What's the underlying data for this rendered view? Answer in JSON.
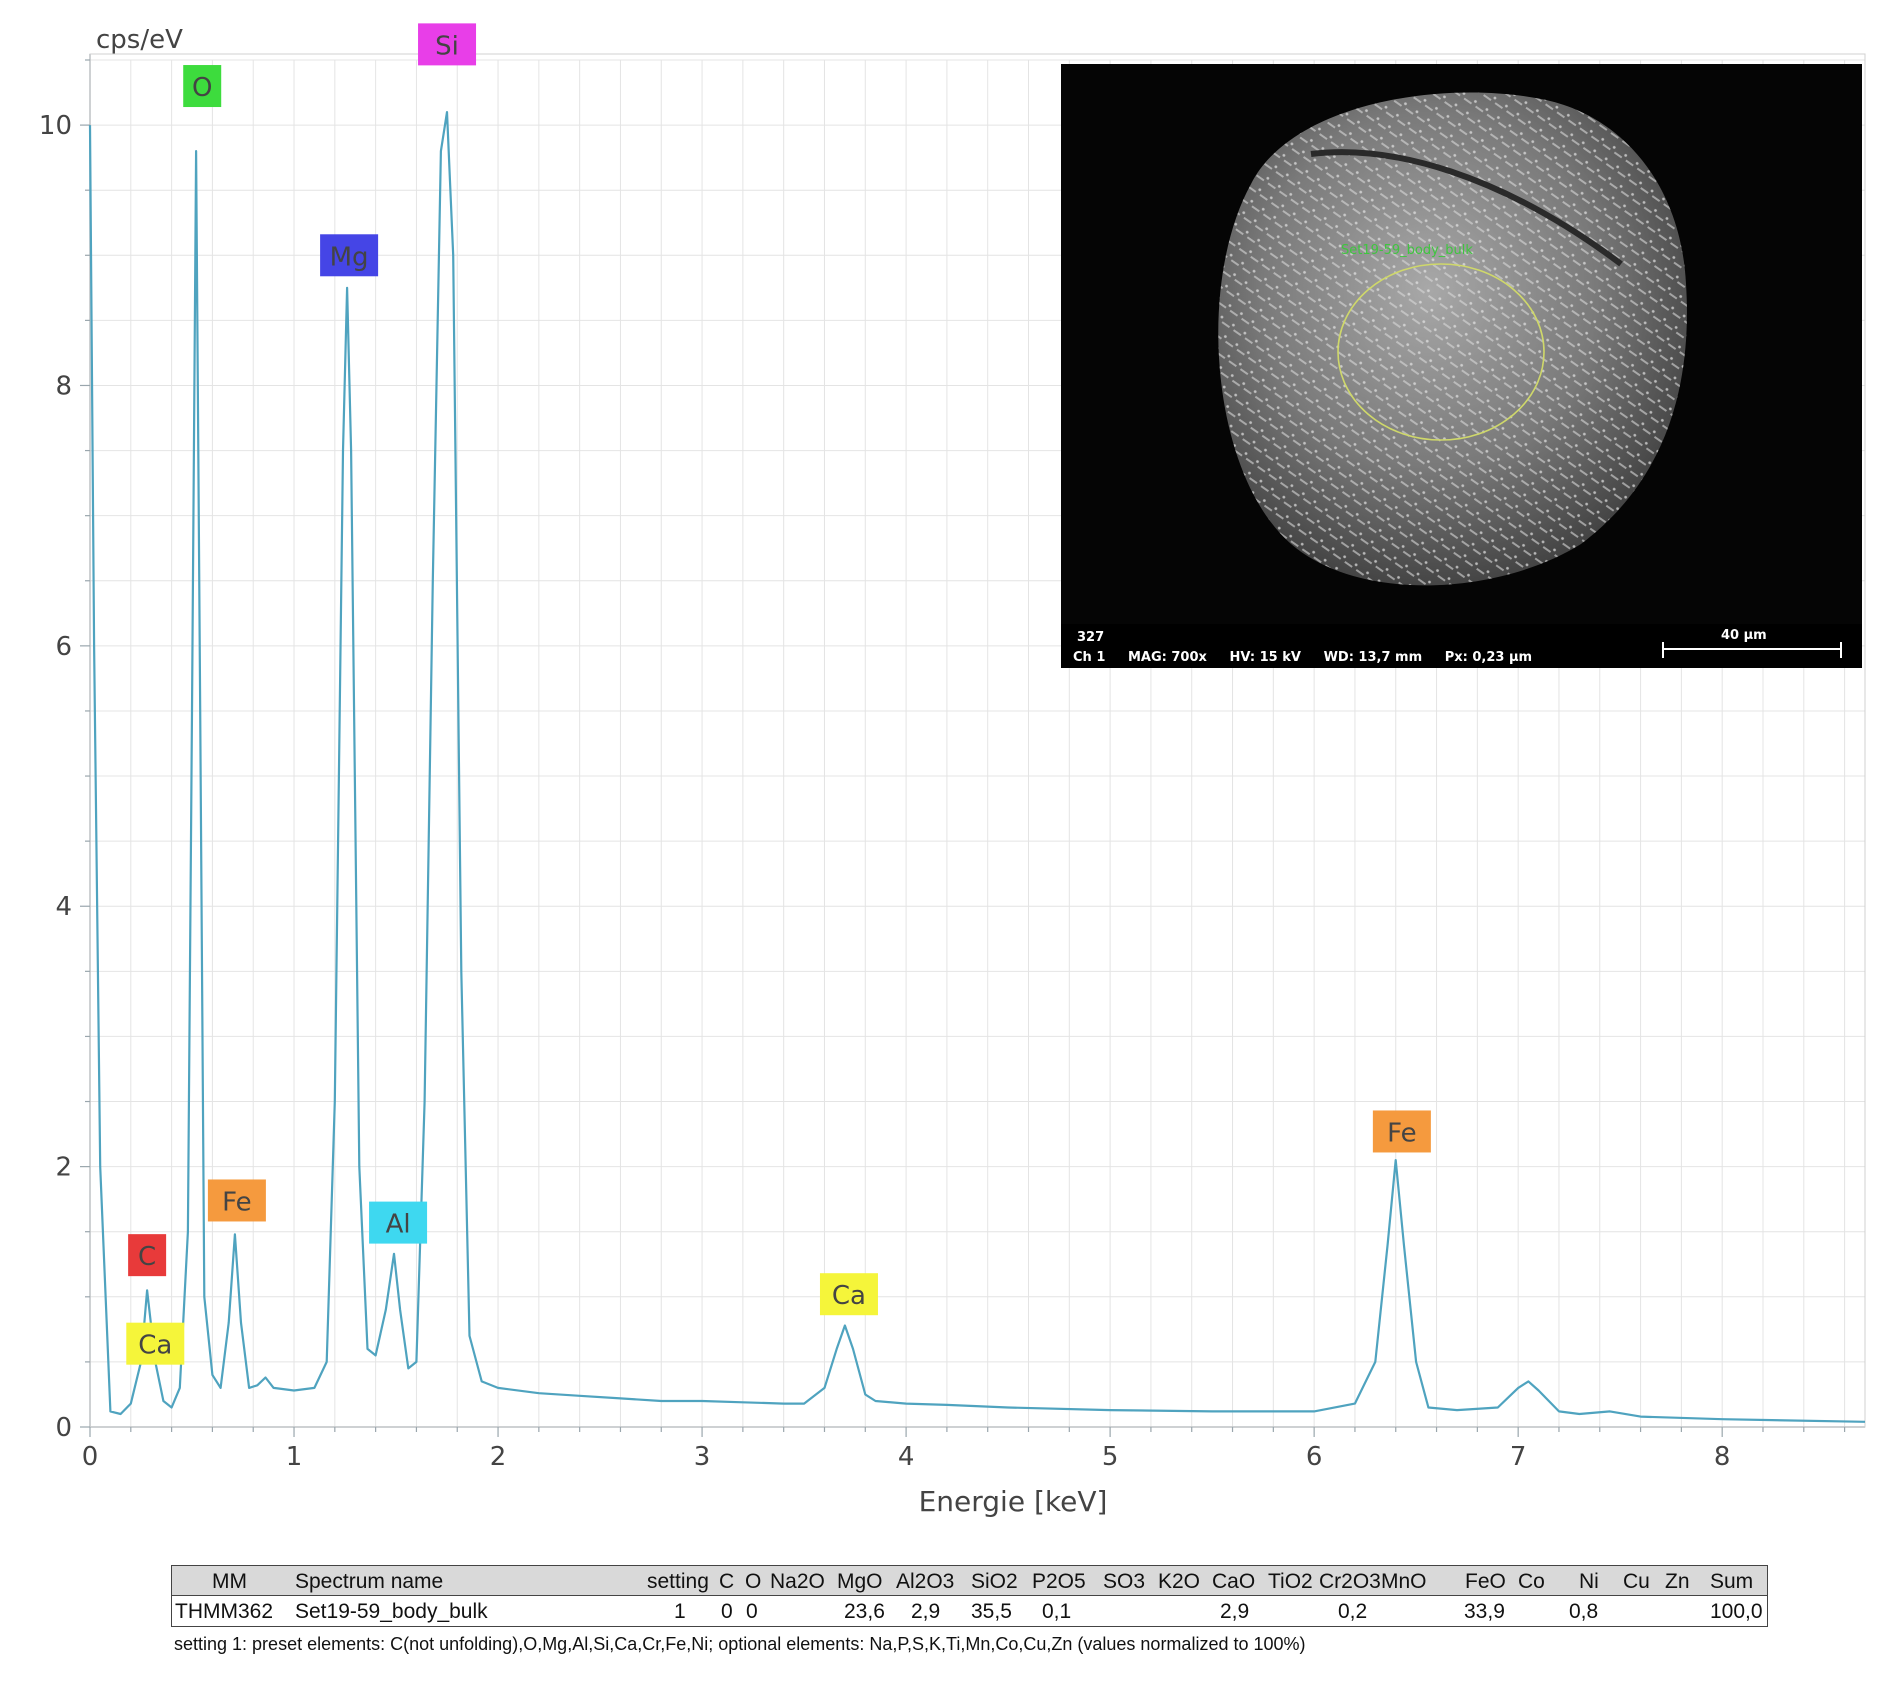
{
  "chart_data": {
    "type": "line",
    "ylabel": "cps/eV",
    "xlabel": "Energie [keV]",
    "xlim": [
      0,
      8.7
    ],
    "ylim": [
      0,
      10.5
    ],
    "x_ticks": [
      "0",
      "1",
      "2",
      "3",
      "4",
      "5",
      "6",
      "7",
      "8"
    ],
    "y_ticks": [
      "0",
      "2",
      "4",
      "6",
      "8",
      "10"
    ],
    "grid": true,
    "line_color": "#4fa3bf",
    "series": [
      {
        "x": [
          0.0,
          0.02,
          0.05,
          0.1,
          0.15,
          0.2,
          0.25,
          0.28,
          0.32,
          0.36,
          0.4,
          0.44,
          0.48,
          0.5,
          0.52,
          0.54,
          0.56,
          0.6,
          0.64,
          0.68,
          0.71,
          0.74,
          0.78,
          0.82,
          0.86,
          0.9,
          1.0,
          1.1,
          1.16,
          1.2,
          1.24,
          1.26,
          1.28,
          1.32,
          1.36,
          1.4,
          1.45,
          1.49,
          1.52,
          1.56,
          1.6,
          1.64,
          1.68,
          1.72,
          1.75,
          1.78,
          1.82,
          1.86,
          1.92,
          2.0,
          2.2,
          2.4,
          2.6,
          2.8,
          3.0,
          3.2,
          3.4,
          3.5,
          3.6,
          3.66,
          3.7,
          3.74,
          3.8,
          3.85,
          4.0,
          4.2,
          4.5,
          5.0,
          5.5,
          6.0,
          6.2,
          6.3,
          6.36,
          6.4,
          6.44,
          6.5,
          6.56,
          6.7,
          6.9,
          7.0,
          7.05,
          7.1,
          7.2,
          7.3,
          7.45,
          7.6,
          8.0,
          8.7
        ],
        "y": [
          10.0,
          6.0,
          2.0,
          0.12,
          0.1,
          0.18,
          0.5,
          1.05,
          0.5,
          0.2,
          0.15,
          0.3,
          1.5,
          5.5,
          9.8,
          5.5,
          1.0,
          0.4,
          0.3,
          0.8,
          1.48,
          0.8,
          0.3,
          0.32,
          0.38,
          0.3,
          0.28,
          0.3,
          0.5,
          2.5,
          7.5,
          8.75,
          7.5,
          2.0,
          0.6,
          0.55,
          0.9,
          1.33,
          0.9,
          0.45,
          0.5,
          2.5,
          6.5,
          9.8,
          10.1,
          9.0,
          3.5,
          0.7,
          0.35,
          0.3,
          0.26,
          0.24,
          0.22,
          0.2,
          0.2,
          0.19,
          0.18,
          0.18,
          0.3,
          0.6,
          0.78,
          0.6,
          0.25,
          0.2,
          0.18,
          0.17,
          0.15,
          0.13,
          0.12,
          0.12,
          0.18,
          0.5,
          1.4,
          2.05,
          1.4,
          0.5,
          0.15,
          0.13,
          0.15,
          0.3,
          0.35,
          0.28,
          0.12,
          0.1,
          0.12,
          0.08,
          0.06,
          0.04
        ]
      }
    ],
    "peak_labels": [
      {
        "text": "O",
        "color": "#3ddc3d",
        "x": 0.55,
        "y": 10.3
      },
      {
        "text": "Si",
        "color": "#e83ee8",
        "x": 1.75,
        "y": 10.62
      },
      {
        "text": "Mg",
        "color": "#4545e6",
        "x": 1.27,
        "y": 9.0
      },
      {
        "text": "C",
        "color": "#e83a3a",
        "x": 0.28,
        "y": 1.32
      },
      {
        "text": "Ca",
        "color": "#f5f53a",
        "x": 0.32,
        "y": 0.64
      },
      {
        "text": "Fe",
        "color": "#f59a3e",
        "x": 0.72,
        "y": 1.74
      },
      {
        "text": "Al",
        "color": "#3ed8f0",
        "x": 1.51,
        "y": 1.57
      },
      {
        "text": "Ca",
        "color": "#f5f53a",
        "x": 3.72,
        "y": 1.02
      },
      {
        "text": "Fe",
        "color": "#f59a3e",
        "x": 6.43,
        "y": 2.27
      }
    ]
  },
  "sem_image": {
    "region_label": "Set19-59_body_bulk",
    "footer_line1": "327",
    "footer_line2": "Ch 1     MAG: 700x     HV: 15 kV     WD: 13,7 mm     Px: 0,23 µm",
    "scale_label": "40 µm"
  },
  "table": {
    "headers": [
      "MM",
      "Spectrum name",
      "setting",
      "C",
      "O",
      "Na2O",
      "MgO",
      "Al2O3",
      "SiO2",
      "P2O5",
      "SO3",
      "K2O",
      "CaO",
      "TiO2",
      "Cr2O3",
      "MnO",
      "FeO",
      "Co",
      "Ni",
      "Cu",
      "Zn",
      "Sum"
    ],
    "row": [
      "THMM362",
      "Set19-59_body_bulk",
      "1",
      "0",
      "0",
      "",
      "23,6",
      "2,9",
      "35,5",
      "0,1",
      "",
      "",
      "2,9",
      "",
      "0,2",
      "",
      "33,9",
      "",
      "0,8",
      "",
      "",
      "100,0"
    ]
  },
  "footnote": "setting 1: preset elements: C(not unfolding),O,Mg,Al,Si,Ca,Cr,Fe,Ni; optional elements: Na,P,S,K,Ti,Mn,Co,Cu,Zn (values normalized to 100%)"
}
